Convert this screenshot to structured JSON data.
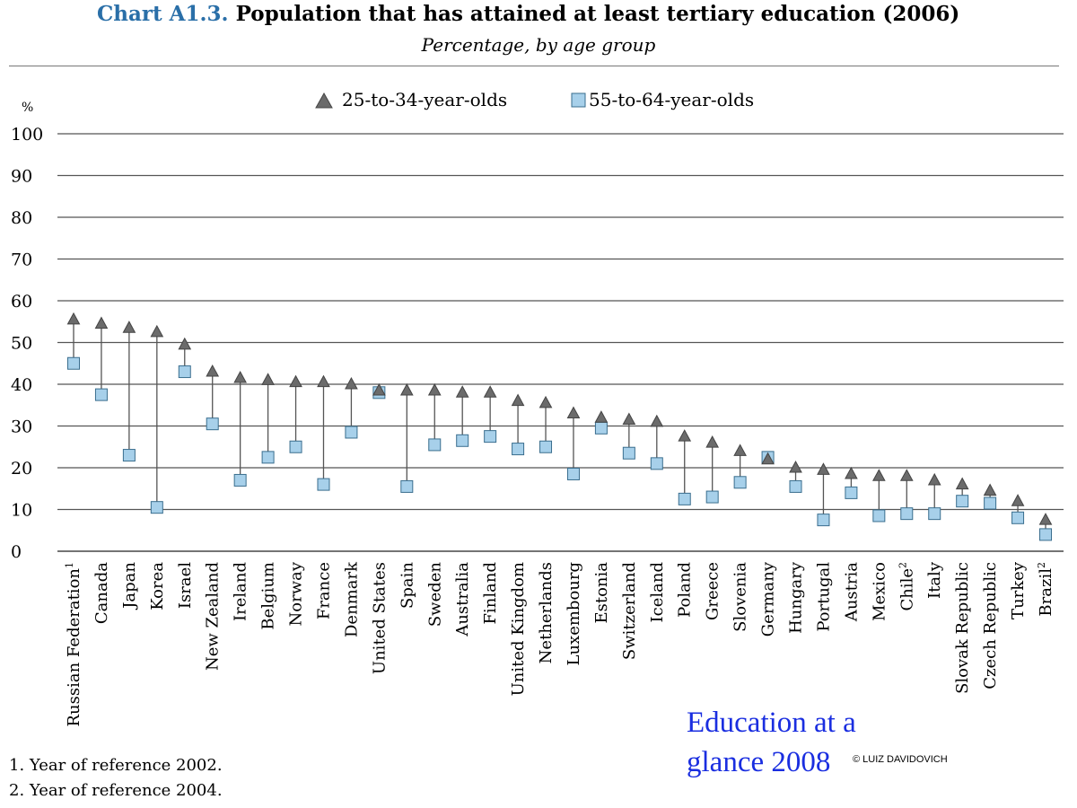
{
  "header": {
    "label": "Chart A1.3.",
    "title": "Population that has attained at least tertiary education (2006)",
    "subtitle": "Percentage, by age group"
  },
  "chart_data": {
    "type": "scatter",
    "ylabel": "%",
    "ylim": [
      0,
      100
    ],
    "yticks": [
      0,
      10,
      20,
      30,
      40,
      50,
      60,
      70,
      80,
      90,
      100
    ],
    "grid": true,
    "legend_position": "top-center",
    "categories": [
      {
        "name": "Russian Federation",
        "sup": "1"
      },
      {
        "name": "Canada",
        "sup": ""
      },
      {
        "name": "Japan",
        "sup": ""
      },
      {
        "name": "Korea",
        "sup": ""
      },
      {
        "name": "Israel",
        "sup": ""
      },
      {
        "name": "New Zealand",
        "sup": ""
      },
      {
        "name": "Ireland",
        "sup": ""
      },
      {
        "name": "Belgium",
        "sup": ""
      },
      {
        "name": "Norway",
        "sup": ""
      },
      {
        "name": "France",
        "sup": ""
      },
      {
        "name": "Denmark",
        "sup": ""
      },
      {
        "name": "United States",
        "sup": ""
      },
      {
        "name": "Spain",
        "sup": ""
      },
      {
        "name": "Sweden",
        "sup": ""
      },
      {
        "name": "Australia",
        "sup": ""
      },
      {
        "name": "Finland",
        "sup": ""
      },
      {
        "name": "United Kingdom",
        "sup": ""
      },
      {
        "name": "Netherlands",
        "sup": ""
      },
      {
        "name": "Luxembourg",
        "sup": ""
      },
      {
        "name": "Estonia",
        "sup": ""
      },
      {
        "name": "Switzerland",
        "sup": ""
      },
      {
        "name": "Iceland",
        "sup": ""
      },
      {
        "name": "Poland",
        "sup": ""
      },
      {
        "name": "Greece",
        "sup": ""
      },
      {
        "name": "Slovenia",
        "sup": ""
      },
      {
        "name": "Germany",
        "sup": ""
      },
      {
        "name": "Hungary",
        "sup": ""
      },
      {
        "name": "Portugal",
        "sup": ""
      },
      {
        "name": "Austria",
        "sup": ""
      },
      {
        "name": "Mexico",
        "sup": ""
      },
      {
        "name": "Chile",
        "sup": "2"
      },
      {
        "name": "Italy",
        "sup": ""
      },
      {
        "name": "Slovak Republic",
        "sup": ""
      },
      {
        "name": "Czech Republic",
        "sup": ""
      },
      {
        "name": "Turkey",
        "sup": ""
      },
      {
        "name": "Brazil",
        "sup": "2"
      }
    ],
    "series": [
      {
        "name": "25-to-34-year-olds",
        "marker": "triangle",
        "color": "#6b6b6b",
        "values": [
          55.5,
          54.5,
          53.5,
          52.5,
          49.5,
          43,
          41.5,
          41,
          40.5,
          40.5,
          40,
          38.5,
          38.5,
          38.5,
          38,
          38,
          36,
          35.5,
          33,
          32,
          31.5,
          31,
          27.5,
          26,
          24,
          22,
          20,
          19.5,
          18.5,
          18,
          18,
          17,
          16,
          14.5,
          12,
          7.5
        ]
      },
      {
        "name": "55-to-64-year-olds",
        "marker": "square",
        "color": "#a7d0ea",
        "values": [
          45,
          37.5,
          23,
          10.5,
          43,
          30.5,
          17,
          22.5,
          25,
          16,
          28.5,
          38,
          15.5,
          25.5,
          26.5,
          27.5,
          24.5,
          25,
          18.5,
          29.5,
          23.5,
          21,
          12.5,
          13,
          16.5,
          22.5,
          15.5,
          7.5,
          14,
          8.5,
          9,
          9,
          12,
          11.5,
          8,
          4
        ]
      }
    ]
  },
  "footnotes": [
    "1. Year of reference 2002.",
    "2. Year of reference 2004."
  ],
  "credit": {
    "text": "Education at a glance 2008",
    "copyright": "© LUIZ DAVIDOVICH"
  }
}
